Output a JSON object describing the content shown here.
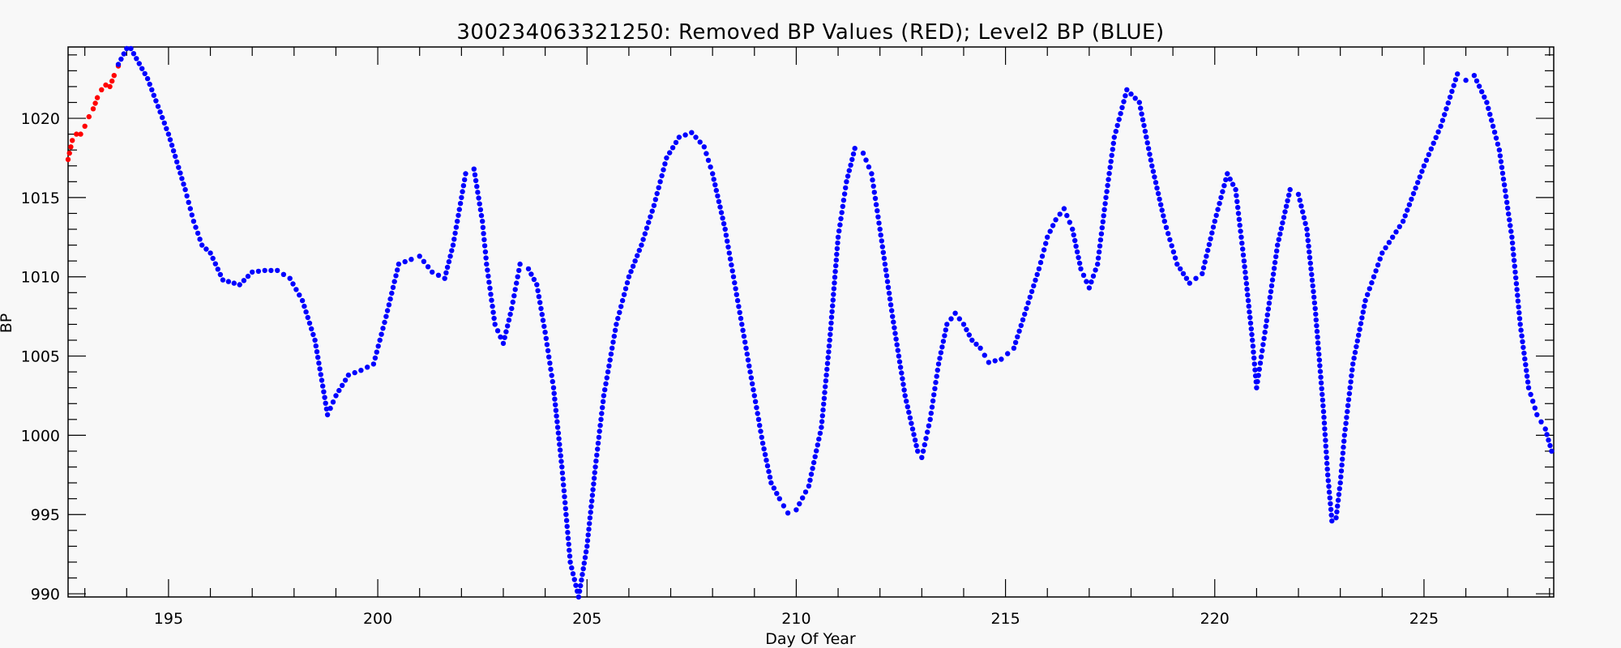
{
  "chart_data": {
    "type": "scatter",
    "title": "300234063321250: Removed BP Values (RED); Level2 BP (BLUE)",
    "xlabel": "Day Of Year",
    "ylabel": "BP",
    "xlim": [
      192.6,
      228.1
    ],
    "ylim": [
      989.8,
      1024.5
    ],
    "x_ticks": [
      195,
      200,
      205,
      210,
      215,
      220,
      225
    ],
    "y_ticks": [
      990,
      995,
      1000,
      1005,
      1010,
      1015,
      1020
    ],
    "x_minor_step": 1,
    "y_minor_step": 1,
    "grid": false,
    "colors": {
      "removed": "#ff0000",
      "level2": "#0000ff"
    },
    "series": [
      {
        "name": "Removed BP Values",
        "color": "#ff0000",
        "points": [
          [
            192.6,
            1017.4
          ],
          [
            192.7,
            1018.6
          ],
          [
            192.8,
            1019.0
          ],
          [
            192.9,
            1019.0
          ],
          [
            193.0,
            1019.5
          ],
          [
            193.1,
            1020.1
          ],
          [
            193.2,
            1020.6
          ],
          [
            193.3,
            1021.3
          ],
          [
            193.4,
            1021.8
          ],
          [
            193.5,
            1022.1
          ],
          [
            193.6,
            1022.0
          ],
          [
            193.7,
            1022.7
          ],
          [
            193.8,
            1023.3
          ]
        ]
      },
      {
        "name": "Level2 BP",
        "color": "#0000ff",
        "points": [
          [
            193.8,
            1023.4
          ],
          [
            194.0,
            1024.4
          ],
          [
            194.1,
            1024.4
          ],
          [
            194.5,
            1022.5
          ],
          [
            195.0,
            1019.0
          ],
          [
            195.4,
            1015.5
          ],
          [
            195.6,
            1013.5
          ],
          [
            195.8,
            1012.0
          ],
          [
            196.0,
            1011.5
          ],
          [
            196.3,
            1009.8
          ],
          [
            196.7,
            1009.5
          ],
          [
            197.0,
            1010.3
          ],
          [
            197.3,
            1010.4
          ],
          [
            197.6,
            1010.4
          ],
          [
            197.9,
            1009.9
          ],
          [
            198.2,
            1008.5
          ],
          [
            198.5,
            1006.0
          ],
          [
            198.8,
            1001.3
          ],
          [
            199.0,
            1002.5
          ],
          [
            199.3,
            1003.8
          ],
          [
            199.6,
            1004.1
          ],
          [
            199.9,
            1004.5
          ],
          [
            200.2,
            1007.5
          ],
          [
            200.5,
            1010.8
          ],
          [
            200.8,
            1011.1
          ],
          [
            201.0,
            1011.3
          ],
          [
            201.3,
            1010.3
          ],
          [
            201.6,
            1009.9
          ],
          [
            201.8,
            1012.0
          ],
          [
            202.1,
            1016.5
          ],
          [
            202.3,
            1016.8
          ],
          [
            202.5,
            1013.5
          ],
          [
            202.6,
            1010.8
          ],
          [
            202.8,
            1007.0
          ],
          [
            203.0,
            1005.8
          ],
          [
            203.2,
            1008.0
          ],
          [
            203.4,
            1010.8
          ],
          [
            203.6,
            1010.5
          ],
          [
            203.8,
            1009.5
          ],
          [
            204.0,
            1006.5
          ],
          [
            204.2,
            1003.0
          ],
          [
            204.4,
            998.0
          ],
          [
            204.6,
            992.0
          ],
          [
            204.8,
            989.8
          ],
          [
            205.0,
            993.0
          ],
          [
            205.2,
            998.0
          ],
          [
            205.4,
            1002.5
          ],
          [
            205.7,
            1007.0
          ],
          [
            206.0,
            1010.0
          ],
          [
            206.3,
            1012.0
          ],
          [
            206.6,
            1014.5
          ],
          [
            206.9,
            1017.5
          ],
          [
            207.2,
            1018.8
          ],
          [
            207.5,
            1019.1
          ],
          [
            207.8,
            1018.2
          ],
          [
            208.0,
            1016.5
          ],
          [
            208.3,
            1013.0
          ],
          [
            208.6,
            1008.5
          ],
          [
            208.9,
            1004.0
          ],
          [
            209.2,
            999.5
          ],
          [
            209.4,
            997.0
          ],
          [
            209.6,
            996.0
          ],
          [
            209.8,
            995.1
          ],
          [
            210.0,
            995.3
          ],
          [
            210.3,
            996.8
          ],
          [
            210.6,
            1000.5
          ],
          [
            210.8,
            1006.0
          ],
          [
            211.0,
            1012.5
          ],
          [
            211.2,
            1016.0
          ],
          [
            211.4,
            1018.1
          ],
          [
            211.6,
            1017.8
          ],
          [
            211.8,
            1016.5
          ],
          [
            212.0,
            1013.0
          ],
          [
            212.3,
            1007.5
          ],
          [
            212.6,
            1002.5
          ],
          [
            212.9,
            999.0
          ],
          [
            213.0,
            998.6
          ],
          [
            213.2,
            1001.0
          ],
          [
            213.4,
            1004.5
          ],
          [
            213.6,
            1007.0
          ],
          [
            213.8,
            1007.7
          ],
          [
            214.0,
            1007.0
          ],
          [
            214.2,
            1006.0
          ],
          [
            214.4,
            1005.5
          ],
          [
            214.6,
            1004.6
          ],
          [
            214.9,
            1004.8
          ],
          [
            215.2,
            1005.5
          ],
          [
            215.5,
            1008.0
          ],
          [
            215.8,
            1010.5
          ],
          [
            216.0,
            1012.5
          ],
          [
            216.2,
            1013.6
          ],
          [
            216.4,
            1014.3
          ],
          [
            216.6,
            1013.0
          ],
          [
            216.8,
            1010.5
          ],
          [
            217.0,
            1009.3
          ],
          [
            217.2,
            1010.8
          ],
          [
            217.4,
            1015.0
          ],
          [
            217.6,
            1018.8
          ],
          [
            217.9,
            1021.8
          ],
          [
            218.2,
            1021.0
          ],
          [
            218.5,
            1017.0
          ],
          [
            218.8,
            1013.5
          ],
          [
            219.1,
            1010.8
          ],
          [
            219.4,
            1009.6
          ],
          [
            219.7,
            1010.2
          ],
          [
            220.0,
            1013.5
          ],
          [
            220.3,
            1016.5
          ],
          [
            220.5,
            1015.5
          ],
          [
            220.7,
            1011.0
          ],
          [
            220.9,
            1006.0
          ],
          [
            221.0,
            1003.0
          ],
          [
            221.2,
            1006.5
          ],
          [
            221.5,
            1012.0
          ],
          [
            221.8,
            1015.5
          ],
          [
            222.0,
            1015.2
          ],
          [
            222.2,
            1013.0
          ],
          [
            222.4,
            1008.0
          ],
          [
            222.6,
            1001.5
          ],
          [
            222.7,
            997.5
          ],
          [
            222.8,
            994.6
          ],
          [
            222.9,
            994.8
          ],
          [
            223.0,
            997.0
          ],
          [
            223.1,
            1000.0
          ],
          [
            223.3,
            1004.5
          ],
          [
            223.6,
            1008.5
          ],
          [
            224.0,
            1011.5
          ],
          [
            224.5,
            1013.5
          ],
          [
            225.0,
            1017.0
          ],
          [
            225.4,
            1019.5
          ],
          [
            225.8,
            1022.8
          ],
          [
            226.0,
            1022.4
          ],
          [
            226.2,
            1022.7
          ],
          [
            226.5,
            1021.0
          ],
          [
            226.8,
            1018.0
          ],
          [
            227.1,
            1012.5
          ],
          [
            227.3,
            1007.0
          ],
          [
            227.5,
            1003.0
          ],
          [
            227.7,
            1001.3
          ],
          [
            227.9,
            1000.4
          ],
          [
            228.05,
            999.0
          ]
        ]
      }
    ]
  }
}
